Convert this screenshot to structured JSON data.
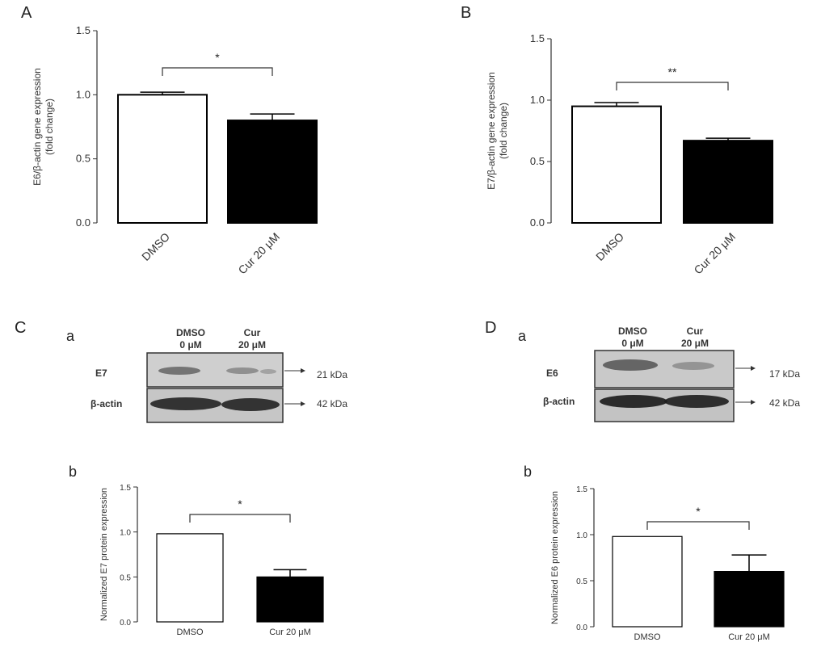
{
  "panels": {
    "A": "A",
    "B": "B",
    "C": "C",
    "D": "D",
    "Ca": "a",
    "Cb": "b",
    "Da": "a",
    "Db": "b"
  },
  "blots": {
    "C": {
      "header1": [
        "DMSO",
        "0 μM"
      ],
      "header2": [
        "Cur",
        "20 μM"
      ],
      "rows": [
        {
          "label": "E7",
          "kda": "21 kDa"
        },
        {
          "label": "β-actin",
          "kda": "42 kDa"
        }
      ]
    },
    "D": {
      "header1": [
        "DMSO",
        "0 μM"
      ],
      "header2": [
        "Cur",
        "20 μM"
      ],
      "rows": [
        {
          "label": "E6",
          "kda": "17 kDa"
        },
        {
          "label": "β-actin",
          "kda": "42 kDa"
        }
      ]
    }
  },
  "chart_data": [
    {
      "type": "bar",
      "panel": "A",
      "categories": [
        "DMSO",
        "Cur 20 μM"
      ],
      "values": [
        1.0,
        0.8
      ],
      "errors": [
        0.02,
        0.05
      ],
      "colors": [
        "#ffffff",
        "#000000"
      ],
      "ylabel": [
        "E6/β-actin gene expression",
        "(fold change)"
      ],
      "ylim": [
        0,
        1.5
      ],
      "yticks": [
        "0.0",
        "0.5",
        "1.0",
        "1.5"
      ],
      "significance": "*"
    },
    {
      "type": "bar",
      "panel": "B",
      "categories": [
        "DMSO",
        "Cur 20 μM"
      ],
      "values": [
        0.95,
        0.67
      ],
      "errors": [
        0.03,
        0.02
      ],
      "colors": [
        "#ffffff",
        "#000000"
      ],
      "ylabel": [
        "E7/β-actin gene expression",
        "(fold change)"
      ],
      "ylim": [
        0,
        1.5
      ],
      "yticks": [
        "0.0",
        "0.5",
        "1.0",
        "1.5"
      ],
      "significance": "**"
    },
    {
      "type": "bar",
      "panel": "Cb",
      "categories": [
        "DMSO",
        "Cur 20 μM"
      ],
      "values": [
        0.98,
        0.5
      ],
      "errors": [
        0.0,
        0.08
      ],
      "colors": [
        "#ffffff",
        "#000000"
      ],
      "ylabel": [
        "Normalized E7 protein expression"
      ],
      "ylim": [
        0,
        1.5
      ],
      "yticks": [
        "0.0",
        "0.5",
        "1.0",
        "1.5"
      ],
      "significance": "*"
    },
    {
      "type": "bar",
      "panel": "Db",
      "categories": [
        "DMSO",
        "Cur 20 μM"
      ],
      "values": [
        0.98,
        0.6
      ],
      "errors": [
        0.0,
        0.18
      ],
      "colors": [
        "#ffffff",
        "#000000"
      ],
      "ylabel": [
        "Normalized E6 protein expression"
      ],
      "ylim": [
        0,
        1.5
      ],
      "yticks": [
        "0.0",
        "0.5",
        "1.0",
        "1.5"
      ],
      "significance": "*"
    }
  ]
}
